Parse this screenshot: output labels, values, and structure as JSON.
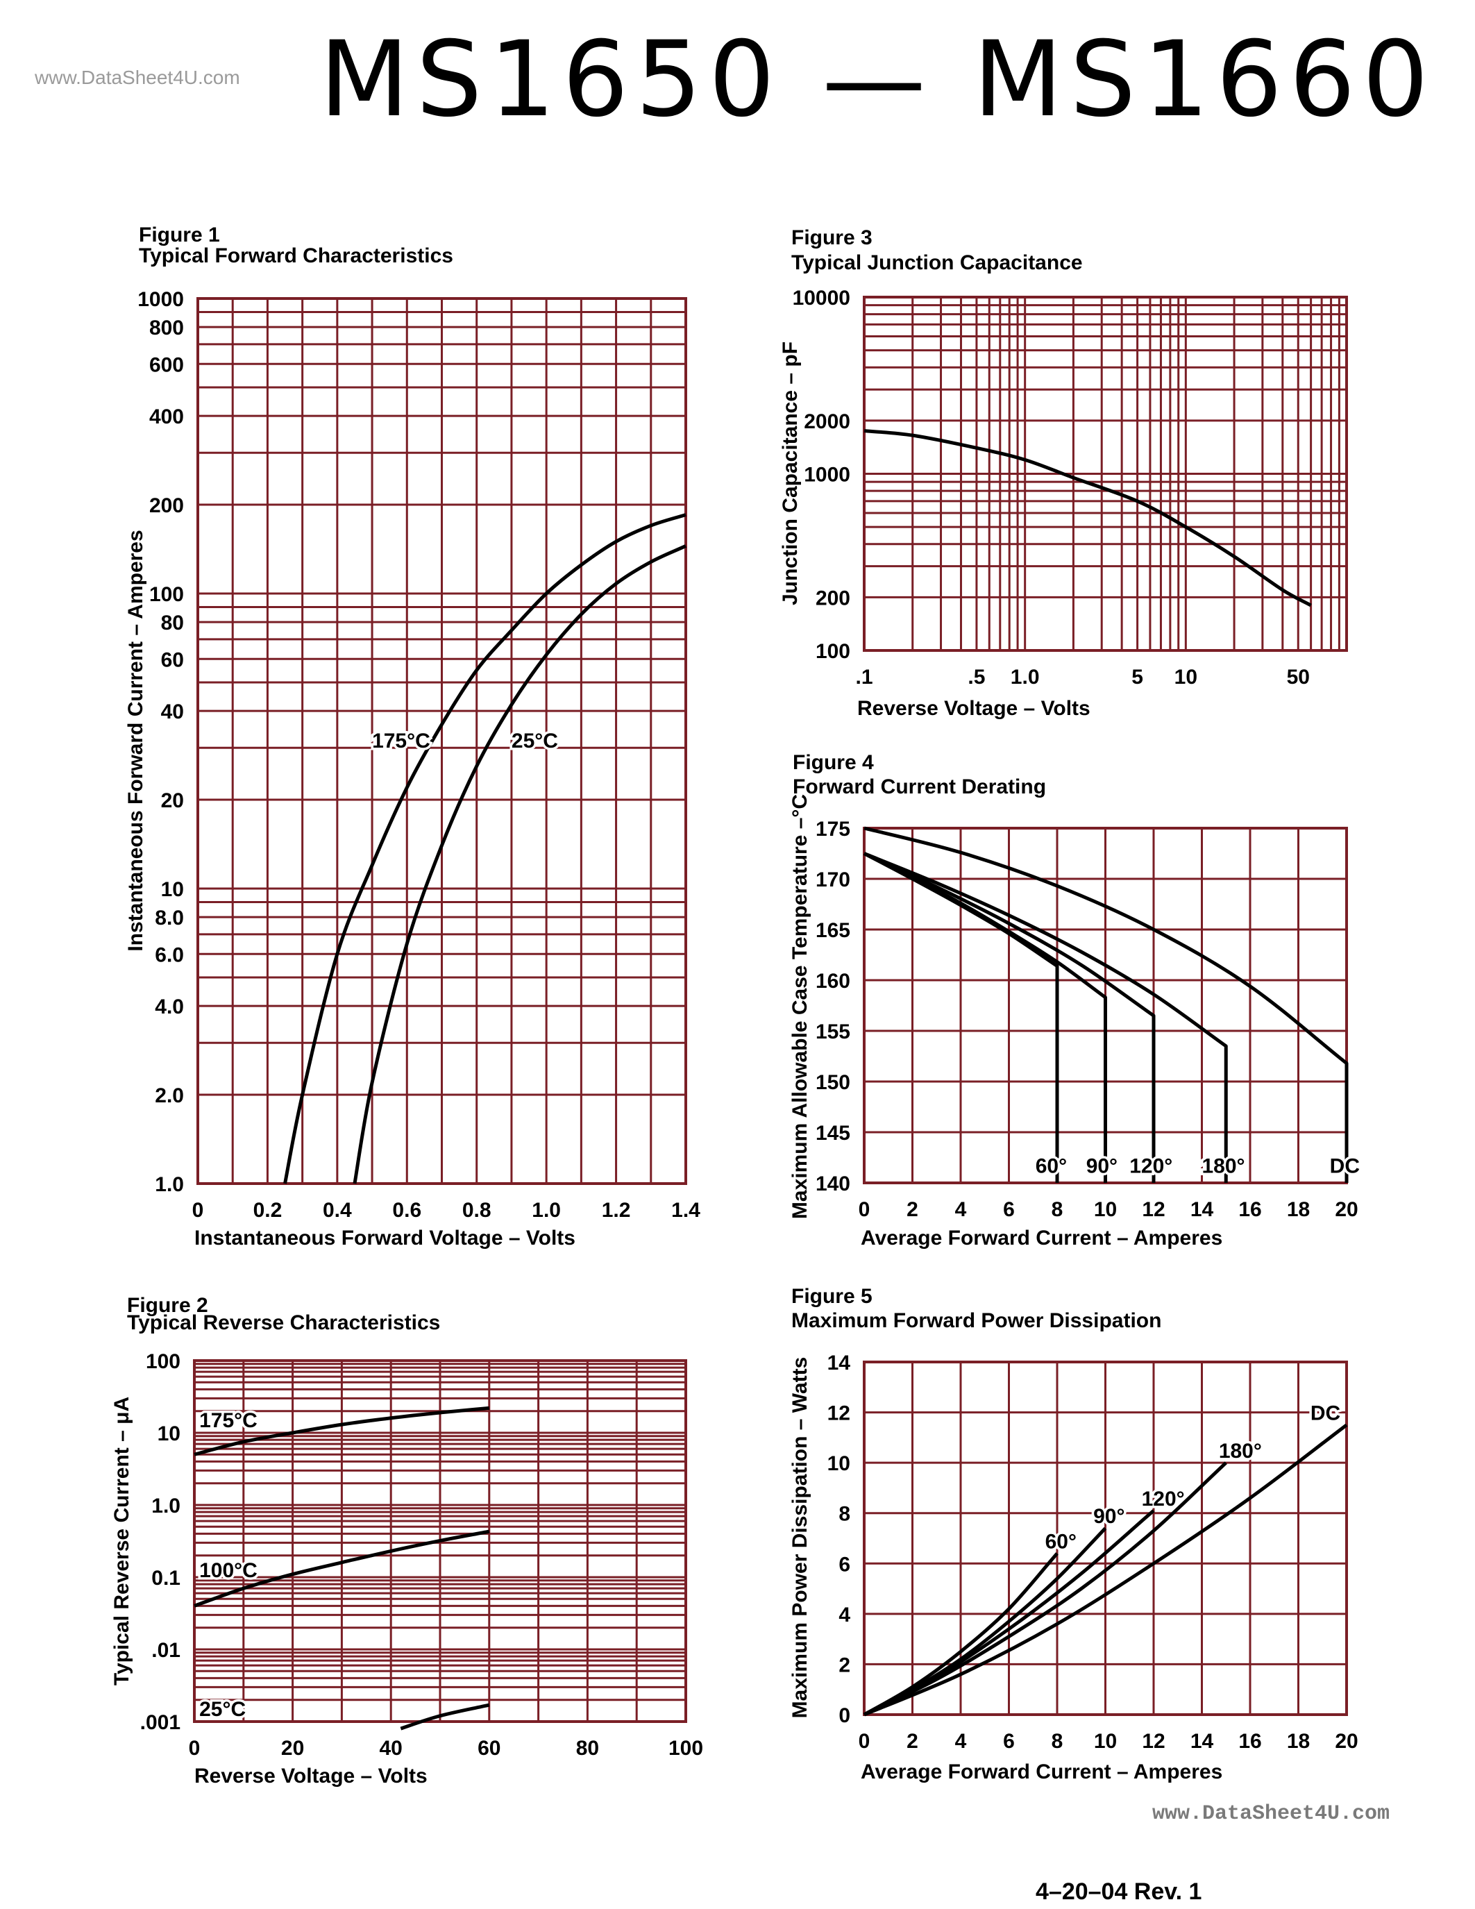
{
  "header": {
    "title": "MS1650  —  MS1660",
    "watermark_top": "www.DataSheet4U.com",
    "watermark_bottom": "www.DataSheet4U.com",
    "footer": "4–20–04   Rev. 1"
  },
  "colors": {
    "grid": "#7a1f26",
    "curve": "#000000",
    "background": "#ffffff"
  },
  "chart_data": [
    {
      "id": "fig1",
      "type": "line",
      "figure_label": "Figure 1",
      "title": "Typical Forward Characteristics",
      "xlabel": "Instantaneous Forward Voltage – Volts",
      "ylabel": "Instantaneous Forward Current – Amperes",
      "xscale": "linear",
      "yscale": "log",
      "xlim": [
        0,
        1.4
      ],
      "ylim": [
        1,
        1000
      ],
      "x_ticks": [
        "0",
        "0.2",
        "0.4",
        "0.6",
        "0.8",
        "1.0",
        "1.2",
        "1.4"
      ],
      "y_ticks": [
        {
          "v": 1,
          "label": "1.0"
        },
        {
          "v": 2,
          "label": "2.0"
        },
        {
          "v": 4,
          "label": "4.0"
        },
        {
          "v": 6,
          "label": "6.0"
        },
        {
          "v": 8,
          "label": "8.0"
        },
        {
          "v": 10,
          "label": "10"
        },
        {
          "v": 20,
          "label": "20"
        },
        {
          "v": 40,
          "label": "40"
        },
        {
          "v": 60,
          "label": "60"
        },
        {
          "v": 80,
          "label": "80"
        },
        {
          "v": 100,
          "label": "100"
        },
        {
          "v": 200,
          "label": "200"
        },
        {
          "v": 400,
          "label": "400"
        },
        {
          "v": 600,
          "label": "600"
        },
        {
          "v": 800,
          "label": "800"
        },
        {
          "v": 1000,
          "label": "1000"
        }
      ],
      "series": [
        {
          "name": "175°C",
          "x": [
            0.25,
            0.3,
            0.4,
            0.5,
            0.6,
            0.7,
            0.8,
            0.9,
            1.0,
            1.1,
            1.2,
            1.3,
            1.4
          ],
          "y": [
            1.0,
            2.0,
            6.0,
            12,
            22,
            36,
            55,
            75,
            100,
            125,
            150,
            170,
            185
          ]
        },
        {
          "name": "25°C",
          "x": [
            0.45,
            0.5,
            0.6,
            0.7,
            0.8,
            0.9,
            1.0,
            1.1,
            1.2,
            1.3,
            1.4
          ],
          "y": [
            1.0,
            2.2,
            6.5,
            14,
            26,
            42,
            62,
            85,
            108,
            128,
            145
          ]
        }
      ],
      "annotations": [
        {
          "text": "175°C",
          "x": 0.5,
          "y": 30
        },
        {
          "text": "25°C",
          "x": 0.9,
          "y": 30
        }
      ]
    },
    {
      "id": "fig2",
      "type": "line",
      "figure_label": "Figure 2",
      "title": "Typical Reverse Characteristics",
      "xlabel": "Reverse Voltage – Volts",
      "ylabel": "Typical Reverse Current – μA",
      "xscale": "linear",
      "yscale": "log",
      "xlim": [
        0,
        100
      ],
      "ylim": [
        0.001,
        100
      ],
      "x_ticks": [
        "0",
        "20",
        "40",
        "60",
        "80",
        "100"
      ],
      "y_ticks": [
        {
          "v": 0.001,
          "label": ".001"
        },
        {
          "v": 0.01,
          "label": ".01"
        },
        {
          "v": 0.1,
          "label": "0.1"
        },
        {
          "v": 1,
          "label": "1.0"
        },
        {
          "v": 10,
          "label": "10"
        },
        {
          "v": 100,
          "label": "100"
        }
      ],
      "series": [
        {
          "name": "175°C",
          "x": [
            0,
            10,
            20,
            30,
            40,
            50,
            60
          ],
          "y": [
            5,
            7.5,
            10,
            13,
            16,
            19,
            22
          ]
        },
        {
          "name": "100°C",
          "x": [
            0,
            10,
            20,
            30,
            40,
            50,
            60
          ],
          "y": [
            0.04,
            0.07,
            0.11,
            0.16,
            0.23,
            0.32,
            0.43
          ]
        },
        {
          "name": "25°C",
          "x": [
            42,
            50,
            60
          ],
          "y": [
            0.0008,
            0.0012,
            0.0017
          ]
        }
      ],
      "annotations": [
        {
          "text": "175°C",
          "x": 1,
          "y": 12
        },
        {
          "text": "100°C",
          "x": 1,
          "y": 0.1
        },
        {
          "text": "25°C",
          "x": 1,
          "y": 0.0012
        }
      ]
    },
    {
      "id": "fig3",
      "type": "line",
      "figure_label": "Figure 3",
      "title": "Typical Junction Capacitance",
      "xlabel": "Reverse Voltage – Volts",
      "ylabel": "Junction Capacitance – pF",
      "xscale": "log",
      "yscale": "log",
      "xlim": [
        0.1,
        100
      ],
      "ylim": [
        100,
        10000
      ],
      "x_ticks": [
        {
          "v": 0.1,
          "label": ".1"
        },
        {
          "v": 0.5,
          "label": ".5"
        },
        {
          "v": 1,
          "label": "1.0"
        },
        {
          "v": 5,
          "label": "5"
        },
        {
          "v": 10,
          "label": "10"
        },
        {
          "v": 50,
          "label": "50"
        }
      ],
      "y_ticks": [
        {
          "v": 100,
          "label": "100"
        },
        {
          "v": 200,
          "label": "200"
        },
        {
          "v": 1000,
          "label": "1000"
        },
        {
          "v": 2000,
          "label": "2000"
        },
        {
          "v": 10000,
          "label": "10000"
        }
      ],
      "series": [
        {
          "name": "",
          "x": [
            0.1,
            0.2,
            0.5,
            1,
            2,
            5,
            10,
            20,
            40,
            60
          ],
          "y": [
            1750,
            1650,
            1400,
            1200,
            950,
            700,
            500,
            340,
            220,
            180
          ]
        }
      ]
    },
    {
      "id": "fig4",
      "type": "line",
      "figure_label": "Figure 4",
      "title": "Forward Current Derating",
      "xlabel": "Average Forward Current – Amperes",
      "ylabel": "Maximum Allowable Case Temperature –°C",
      "xscale": "linear",
      "yscale": "linear",
      "xlim": [
        0,
        20
      ],
      "ylim": [
        140,
        175
      ],
      "x_ticks": [
        "0",
        "2",
        "4",
        "6",
        "8",
        "10",
        "12",
        "14",
        "16",
        "18",
        "20"
      ],
      "y_ticks": [
        "140",
        "145",
        "150",
        "155",
        "160",
        "165",
        "170",
        "175"
      ],
      "series": [
        {
          "name": "60°",
          "x": [
            0,
            2,
            4,
            6,
            8,
            8
          ],
          "y": [
            172.5,
            170.0,
            167.4,
            164.6,
            161.4,
            140
          ]
        },
        {
          "name": "90°",
          "x": [
            0,
            2,
            4,
            6,
            8,
            10,
            10
          ],
          "y": [
            172.5,
            170.1,
            167.6,
            164.8,
            161.8,
            158.3,
            140
          ]
        },
        {
          "name": "120°",
          "x": [
            0,
            3,
            6,
            9,
            12,
            12
          ],
          "y": [
            172.5,
            169.2,
            165.6,
            161.5,
            156.5,
            140
          ]
        },
        {
          "name": "180°",
          "x": [
            0,
            3,
            6,
            9,
            12,
            15,
            15
          ],
          "y": [
            172.5,
            169.6,
            166.4,
            162.8,
            158.6,
            153.5,
            140
          ]
        },
        {
          "name": "DC",
          "x": [
            0,
            4,
            8,
            12,
            16,
            20,
            20
          ],
          "y": [
            175,
            172.6,
            169.3,
            165.0,
            159.4,
            151.8,
            140
          ]
        }
      ],
      "annotations": [
        {
          "text": "60°",
          "x": 7.1,
          "y": 141
        },
        {
          "text": "90°",
          "x": 9.2,
          "y": 141
        },
        {
          "text": "120°",
          "x": 11.0,
          "y": 141
        },
        {
          "text": "180°",
          "x": 14.0,
          "y": 141
        },
        {
          "text": "DC",
          "x": 19.3,
          "y": 141
        }
      ]
    },
    {
      "id": "fig5",
      "type": "line",
      "figure_label": "Figure 5",
      "title": "Maximum Forward Power Dissipation",
      "xlabel": "Average Forward Current – Amperes",
      "ylabel": "Maximum Power Dissipation – Watts",
      "xscale": "linear",
      "yscale": "linear",
      "xlim": [
        0,
        20
      ],
      "ylim": [
        0,
        14
      ],
      "x_ticks": [
        "0",
        "2",
        "4",
        "6",
        "8",
        "10",
        "12",
        "14",
        "16",
        "18",
        "20"
      ],
      "y_ticks": [
        "0",
        "2",
        "4",
        "6",
        "8",
        "10",
        "12",
        "14"
      ],
      "series": [
        {
          "name": "60°",
          "x": [
            0,
            2,
            4,
            6,
            8
          ],
          "y": [
            0,
            1.1,
            2.5,
            4.2,
            6.4
          ]
        },
        {
          "name": "90°",
          "x": [
            0,
            2,
            4,
            6,
            8,
            10
          ],
          "y": [
            0,
            1.0,
            2.2,
            3.7,
            5.4,
            7.4
          ]
        },
        {
          "name": "120°",
          "x": [
            0,
            3,
            6,
            9,
            12
          ],
          "y": [
            0,
            1.5,
            3.4,
            5.6,
            8.1
          ]
        },
        {
          "name": "180°",
          "x": [
            0,
            3,
            6,
            9,
            12,
            15
          ],
          "y": [
            0,
            1.4,
            3.1,
            5.0,
            7.3,
            10.0
          ]
        },
        {
          "name": "DC",
          "x": [
            0,
            4,
            8,
            12,
            16,
            20
          ],
          "y": [
            0,
            1.6,
            3.6,
            6.0,
            8.6,
            11.5
          ]
        }
      ],
      "annotations": [
        {
          "text": "60°",
          "x": 7.5,
          "y": 6.6
        },
        {
          "text": "90°",
          "x": 9.5,
          "y": 7.6
        },
        {
          "text": "120°",
          "x": 11.5,
          "y": 8.3
        },
        {
          "text": "180°",
          "x": 14.7,
          "y": 10.2
        },
        {
          "text": "DC",
          "x": 18.5,
          "y": 11.7
        }
      ]
    }
  ]
}
